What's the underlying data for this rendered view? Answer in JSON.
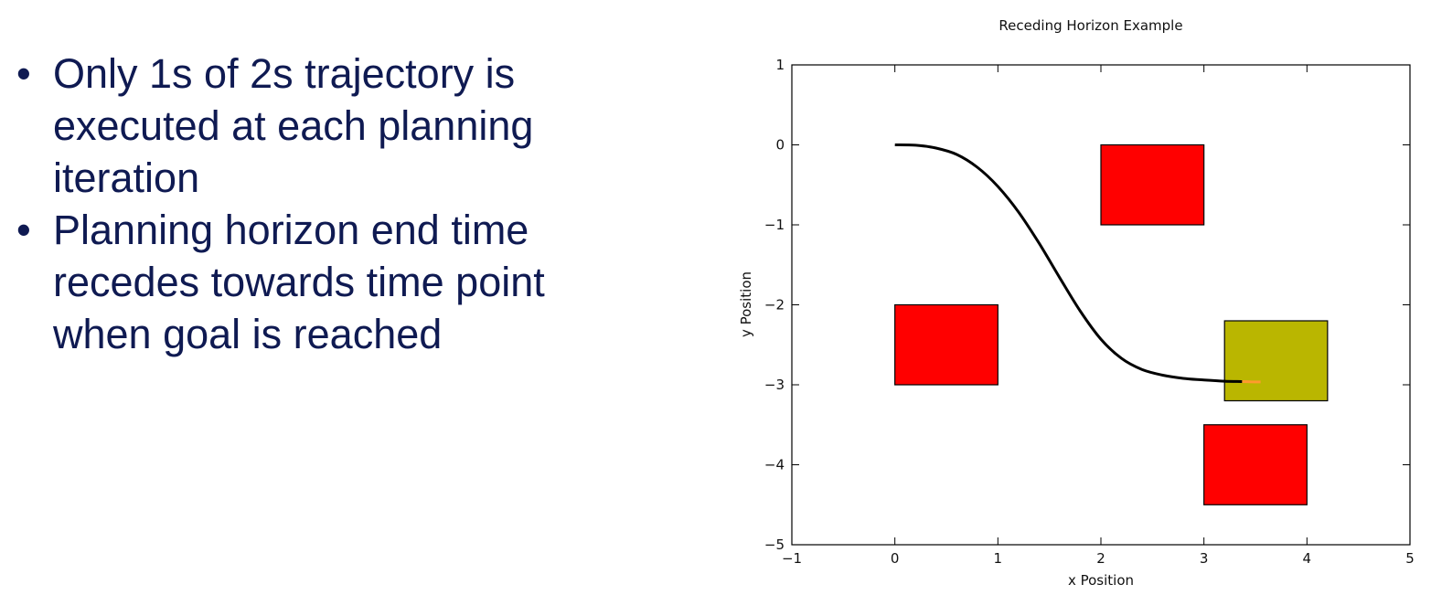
{
  "slide": {
    "bullets": [
      "Only 1s of 2s trajectory is executed at each planning iteration",
      "Planning horizon end time recedes towards time point when goal is reached"
    ]
  },
  "chart_data": {
    "type": "scatter",
    "title": "Receding Horizon Example",
    "xlabel": "x Position",
    "ylabel": "y Position",
    "xlim": [
      -1,
      5
    ],
    "ylim": [
      -5,
      1
    ],
    "xticks": [
      -1,
      0,
      1,
      2,
      3,
      4,
      5
    ],
    "yticks": [
      1,
      0,
      -1,
      -2,
      -3,
      -4,
      -5
    ],
    "xtick_labels": [
      "−1",
      "0",
      "1",
      "2",
      "3",
      "4",
      "5"
    ],
    "ytick_labels": [
      "1",
      "0",
      "−1",
      "−2",
      "−3",
      "−4",
      "−5"
    ],
    "grid": false,
    "obstacles": [
      {
        "x": 0,
        "y": -3,
        "width": 1,
        "height": 1,
        "color": "#ff0000"
      },
      {
        "x": 2,
        "y": -1,
        "width": 1,
        "height": 1,
        "color": "#ff0000"
      },
      {
        "x": 3,
        "y": -4.5,
        "width": 1,
        "height": 1,
        "color": "#ff0000"
      }
    ],
    "goal": {
      "x": 3.2,
      "y": -3.2,
      "width": 1,
      "height": 1,
      "color": "#bab600"
    },
    "trajectory": {
      "color": "#000000",
      "points": [
        [
          0,
          0
        ],
        [
          0.2,
          -0.005
        ],
        [
          0.4,
          -0.04
        ],
        [
          0.6,
          -0.12
        ],
        [
          0.8,
          -0.28
        ],
        [
          1.0,
          -0.52
        ],
        [
          1.2,
          -0.84
        ],
        [
          1.4,
          -1.23
        ],
        [
          1.6,
          -1.66
        ],
        [
          1.8,
          -2.08
        ],
        [
          2.0,
          -2.43
        ],
        [
          2.2,
          -2.67
        ],
        [
          2.4,
          -2.81
        ],
        [
          2.6,
          -2.88
        ],
        [
          2.8,
          -2.92
        ],
        [
          3.0,
          -2.94
        ],
        [
          3.2,
          -2.955
        ],
        [
          3.37,
          -2.96
        ]
      ]
    },
    "horizon_segment": {
      "color": "#ff9a2e",
      "points": [
        [
          3.37,
          -2.96
        ],
        [
          3.45,
          -2.962
        ],
        [
          3.55,
          -2.965
        ]
      ]
    }
  }
}
